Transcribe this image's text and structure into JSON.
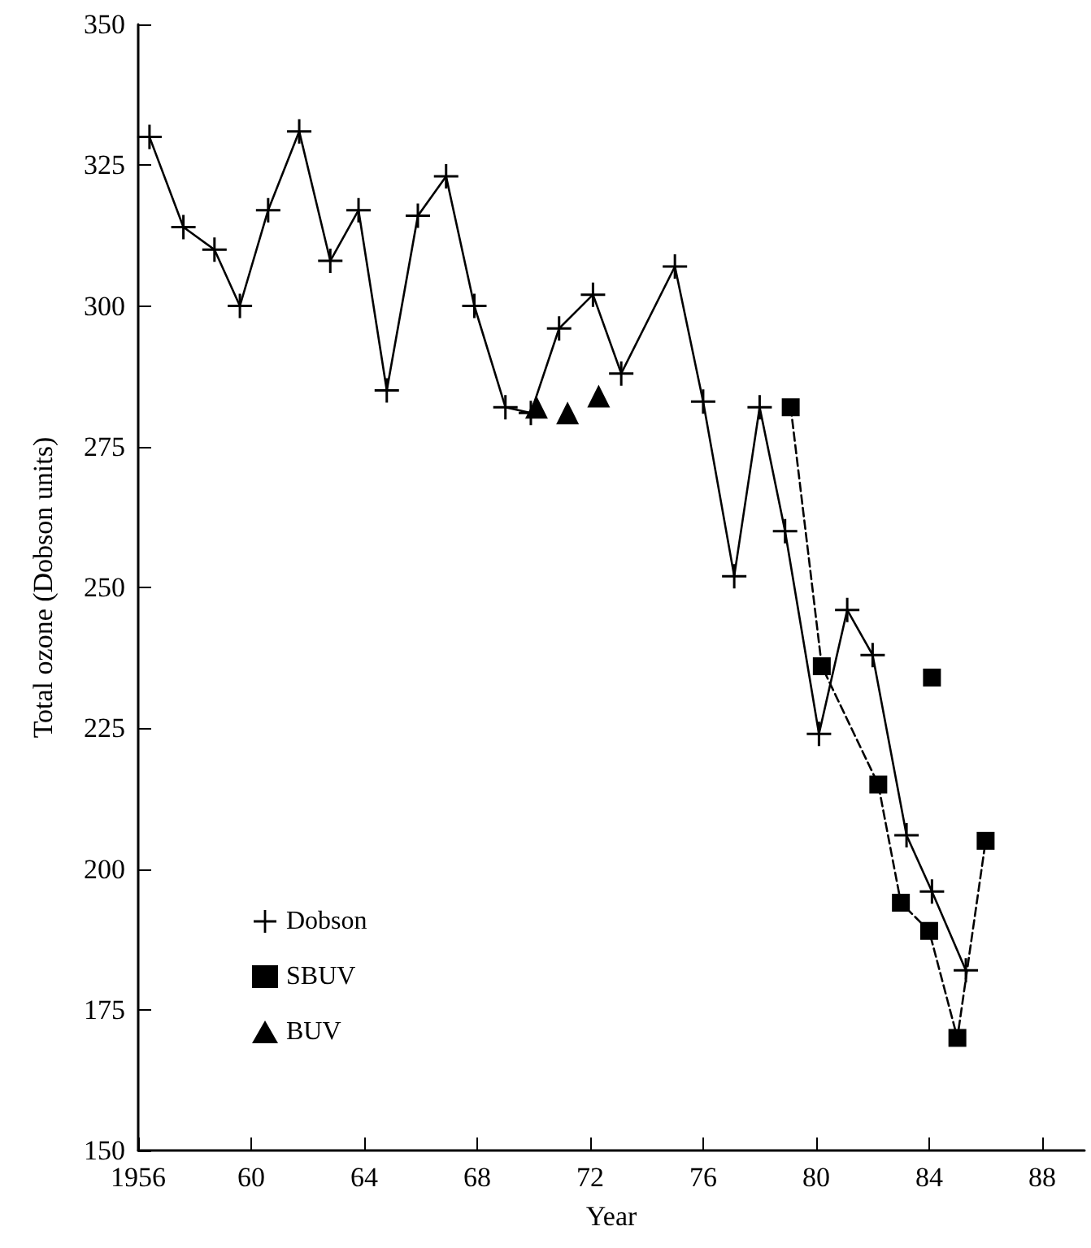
{
  "chart_data": {
    "type": "line",
    "xlabel": "Year",
    "ylabel": "Total ozone (Dobson units)",
    "xlim": [
      1956,
      1989.5
    ],
    "xticks": [
      1956,
      {
        "value": 1960,
        "label": "60"
      },
      {
        "value": 1964,
        "label": "64"
      },
      {
        "value": 1968,
        "label": "68"
      },
      {
        "value": 1972,
        "label": "72"
      },
      {
        "value": 1976,
        "label": "76"
      },
      {
        "value": 1980,
        "label": "80"
      },
      {
        "value": 1984,
        "label": "84"
      },
      {
        "value": 1988,
        "label": "88"
      }
    ],
    "ylim": [
      150,
      350
    ],
    "yticks": [
      150,
      175,
      200,
      225,
      250,
      275,
      300,
      325,
      350
    ],
    "grid": false,
    "legend": "bottom left",
    "series": [
      {
        "name": "Dobson",
        "color": "#000000",
        "marker": "cross",
        "line_style": "solid",
        "x": [
          1956.4,
          1957.6,
          1958.7,
          1959.6,
          1960.6,
          1961.7,
          1962.8,
          1963.8,
          1964.8,
          1965.9,
          1966.9,
          1967.9,
          1969.0,
          1969.9,
          1970.9,
          1972.1,
          1973.1,
          1975.0,
          1976.0,
          1977.1,
          1978.0,
          1978.9,
          1980.1,
          1981.1,
          1982.0,
          1983.2,
          1984.1,
          1985.3
        ],
        "values": [
          330,
          314,
          310,
          300,
          317,
          331,
          308,
          317,
          285,
          316,
          323,
          300,
          282,
          281,
          296,
          302,
          288,
          307,
          283,
          252,
          282,
          260,
          224,
          246,
          238,
          206,
          196,
          182
        ]
      },
      {
        "name": "SBUV",
        "color": "#000000",
        "marker": "square",
        "line_style": "dashed",
        "x": [
          1979.1,
          1980.2,
          1982.2,
          1983.0,
          1984.0,
          1985.0,
          1986.0
        ],
        "values": [
          282,
          236,
          215,
          194,
          189,
          170,
          205
        ]
      },
      {
        "name": "BUV",
        "type": "scatter",
        "color": "#000000",
        "marker": "triangle",
        "x": [
          1970.1,
          1971.2,
          1972.3
        ],
        "values": [
          282,
          281,
          284
        ]
      },
      {
        "type": "scatter",
        "color": "#000000",
        "marker": "square",
        "x": [
          1984.1
        ],
        "values": [
          234
        ]
      }
    ]
  }
}
